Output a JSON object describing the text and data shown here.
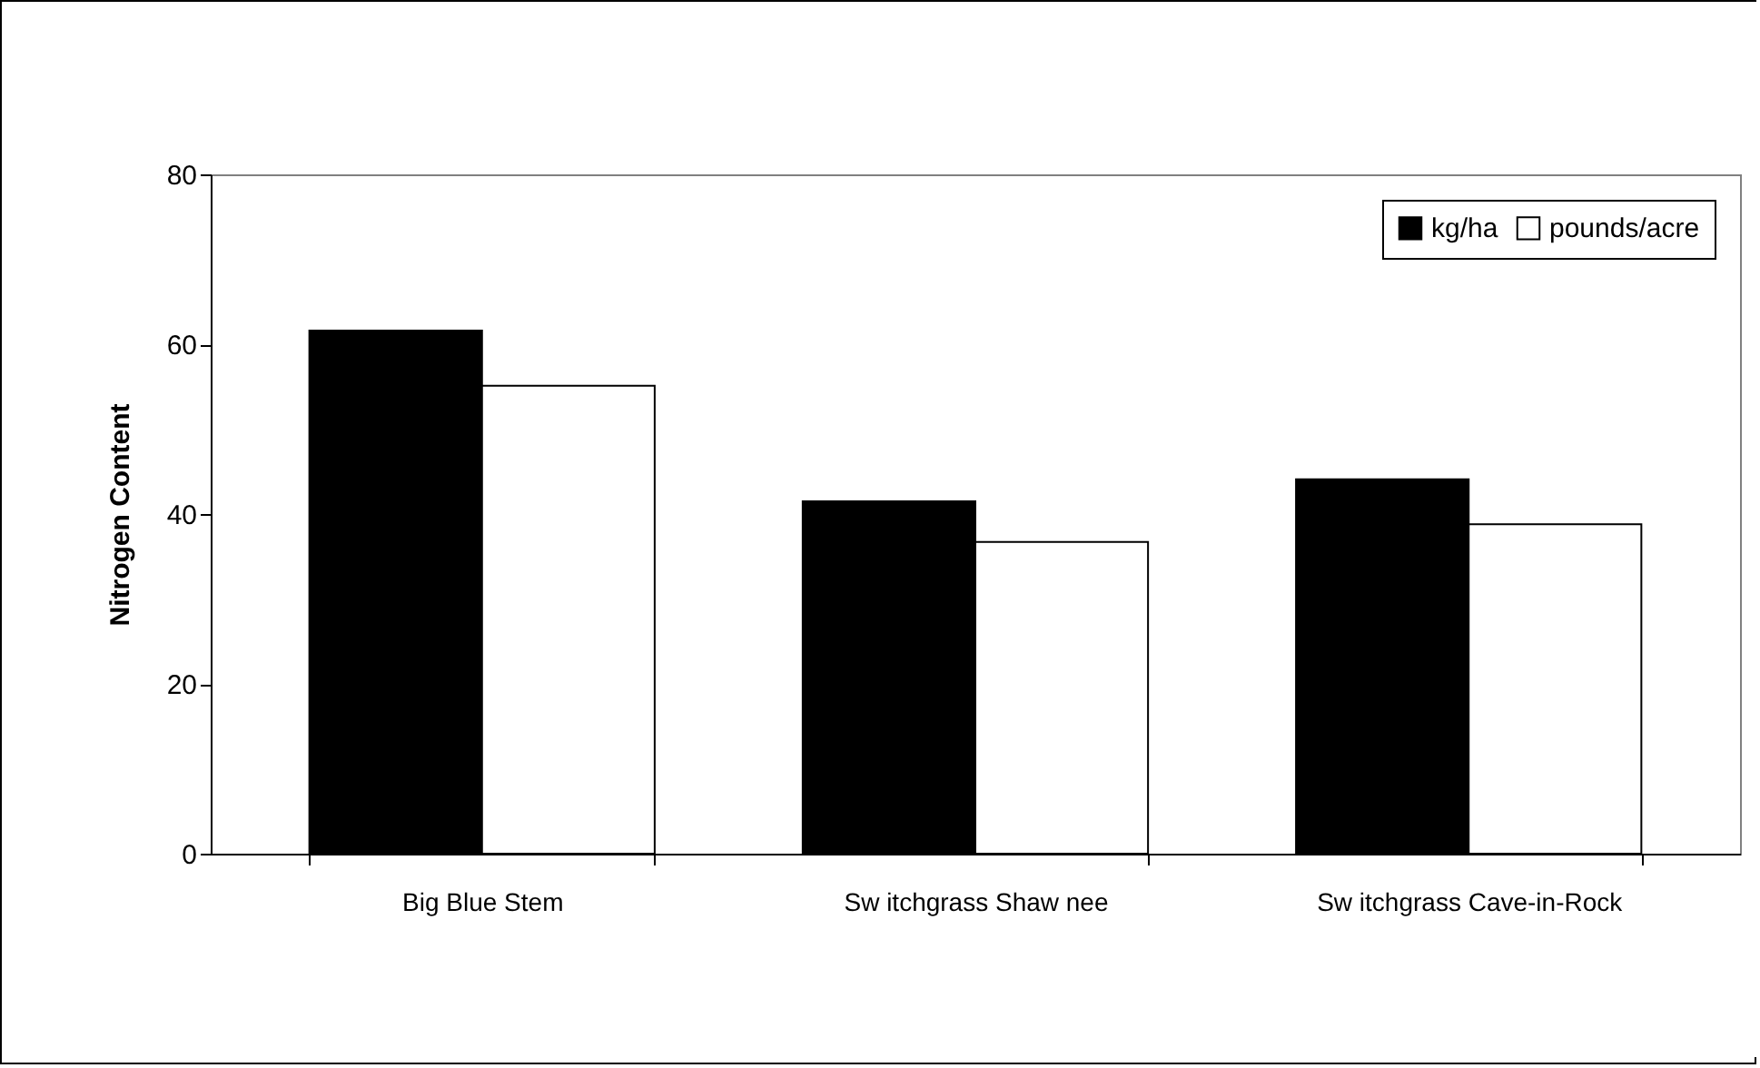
{
  "chart_data": {
    "type": "bar",
    "ylabel": "Nitrogen Content",
    "categories": [
      "Big Blue Stem",
      "Sw itchgrass Shaw nee",
      "Sw itchgrass Cave-in-Rock"
    ],
    "series": [
      {
        "name": "kg/ha",
        "color": "#000000",
        "values": [
          61.6,
          41.5,
          44.1
        ]
      },
      {
        "name": "pounds/acre",
        "color": "#ffffff",
        "values": [
          55.1,
          36.7,
          38.8
        ]
      }
    ],
    "ylim": [
      0,
      80
    ],
    "yticks": [
      0,
      20,
      40,
      60,
      80
    ],
    "grid": false,
    "legend": "top right"
  }
}
